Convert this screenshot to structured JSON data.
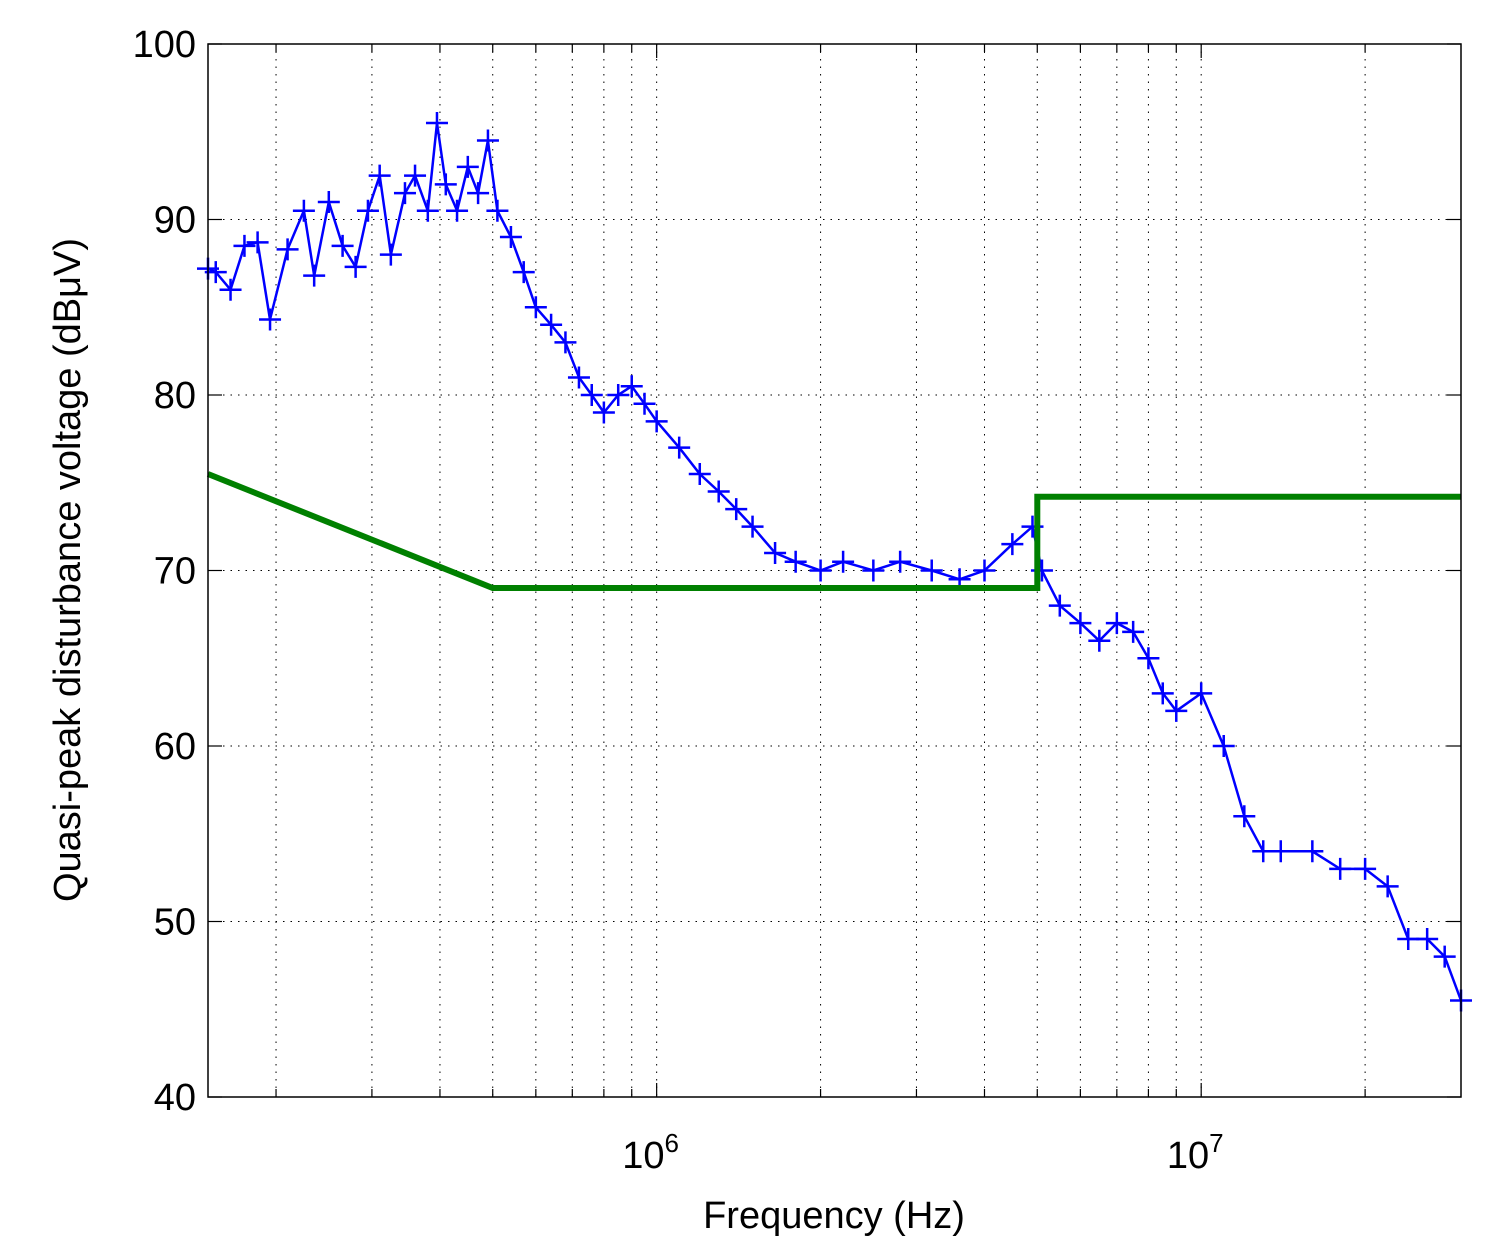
{
  "chart_data": {
    "type": "line",
    "xlabel": "Frequency (Hz)",
    "ylabel": "Quasi-peak disturbance voltage (dBμV)",
    "x_scale": "log",
    "xlim": [
      150000,
      30000000
    ],
    "ylim": [
      40,
      100
    ],
    "grid": true,
    "x_ticks": [
      {
        "value": 1000000,
        "base": "10",
        "exp": "6"
      },
      {
        "value": 10000000,
        "base": "10",
        "exp": "7"
      }
    ],
    "y_ticks": [
      40,
      50,
      60,
      70,
      80,
      90,
      100
    ],
    "series": [
      {
        "color": "#0000ff",
        "marker": "plus",
        "x": [
          150000,
          155000,
          165000,
          175000,
          185000,
          195000,
          210000,
          225000,
          235000,
          250000,
          265000,
          280000,
          295000,
          310000,
          325000,
          345000,
          360000,
          380000,
          395000,
          410000,
          430000,
          450000,
          470000,
          490000,
          510000,
          540000,
          570000,
          600000,
          640000,
          680000,
          720000,
          760000,
          800000,
          850000,
          900000,
          950000,
          1000000,
          1100000,
          1200000,
          1300000,
          1400000,
          1500000,
          1650000,
          1800000,
          2000000,
          2200000,
          2500000,
          2800000,
          3200000,
          3600000,
          4000000,
          4500000,
          4900000,
          5100000,
          5500000,
          6000000,
          6500000,
          7000000,
          7500000,
          8000000,
          8500000,
          9000000,
          10000000,
          11000000,
          12000000,
          13000000,
          14000000,
          16000000,
          18000000,
          20000000,
          22000000,
          24000000,
          26000000,
          28000000,
          30000000
        ],
        "y": [
          87.2,
          87.0,
          86.0,
          88.5,
          88.7,
          84.3,
          88.3,
          90.5,
          86.8,
          91.0,
          88.5,
          87.3,
          90.5,
          92.5,
          88.0,
          91.5,
          92.5,
          90.5,
          95.5,
          92.0,
          90.5,
          93.0,
          91.5,
          94.5,
          90.5,
          89.0,
          87.0,
          85.0,
          84.0,
          83.0,
          81.0,
          80.0,
          79.0,
          80.0,
          80.5,
          79.5,
          78.5,
          77.0,
          75.5,
          74.5,
          73.5,
          72.5,
          71.0,
          70.5,
          70.0,
          70.5,
          70.0,
          70.5,
          70.0,
          69.5,
          70.0,
          71.5,
          72.5,
          70.0,
          68.0,
          67.0,
          66.0,
          67.0,
          66.5,
          65.0,
          63.0,
          62.0,
          63.0,
          60.0,
          56.0,
          54.0,
          54.0,
          54.0,
          53.0,
          53.0,
          52.0,
          49.0,
          49.0,
          48.0,
          45.5
        ]
      },
      {
        "color": "#008000",
        "marker": "none",
        "x": [
          150000,
          500000,
          5000000,
          5000000,
          30000000
        ],
        "y": [
          75.5,
          69.0,
          69.0,
          74.2,
          74.2
        ]
      }
    ]
  }
}
